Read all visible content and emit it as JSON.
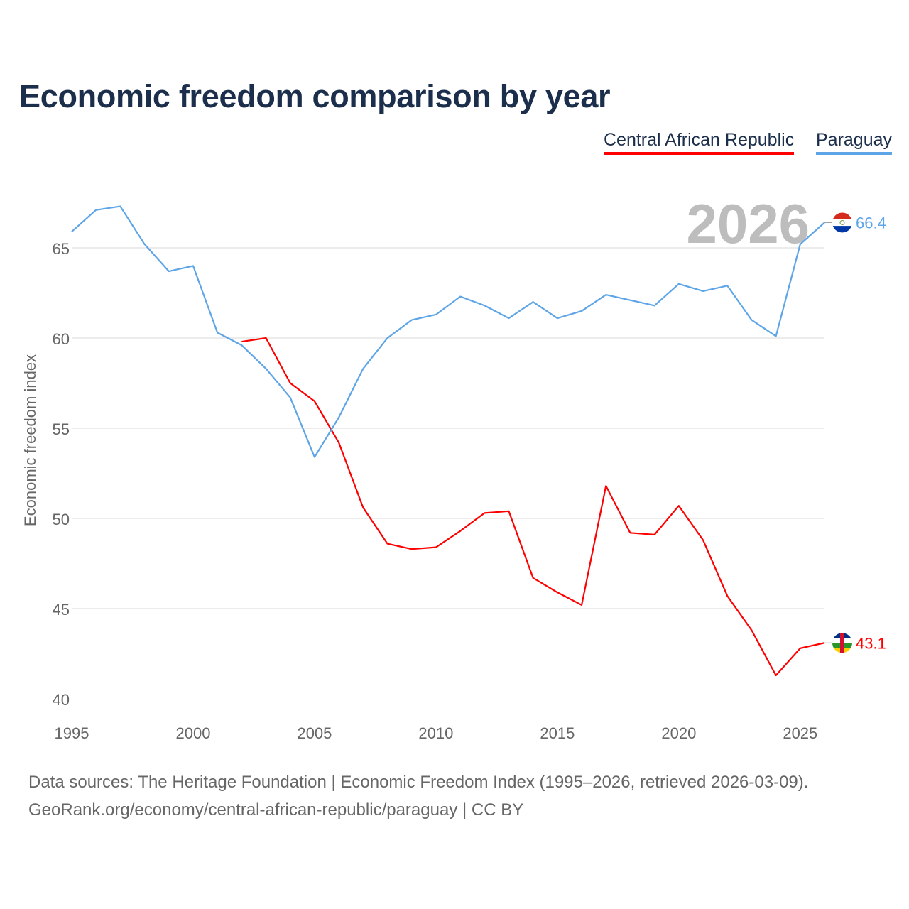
{
  "title": "Economic freedom comparison by year",
  "footer": {
    "sources": "Data sources: The Heritage Foundation | Economic Freedom Index (1995–2026, retrieved 2026-03-09).",
    "url": "GeoRank.org/economy/central-african-republic/paraguay | CC BY"
  },
  "chart_data": {
    "type": "line",
    "title": "Economic freedom comparison by year",
    "xlabel": "",
    "ylabel": "Economic freedom index",
    "xlim": [
      1995,
      2026
    ],
    "ylim": [
      40,
      68
    ],
    "xticks": [
      1995,
      2000,
      2005,
      2010,
      2015,
      2020,
      2025
    ],
    "yticks": [
      40,
      45,
      50,
      55,
      60,
      65
    ],
    "grid": true,
    "legend_position": "top-right",
    "year_label": "2026",
    "series": [
      {
        "name": "Central African Republic",
        "color": "#ff0000",
        "flag": "central-african-republic-flag",
        "end_label": "43.1",
        "x": [
          2002,
          2003,
          2004,
          2005,
          2006,
          2007,
          2008,
          2009,
          2010,
          2011,
          2012,
          2013,
          2014,
          2015,
          2016,
          2017,
          2018,
          2019,
          2020,
          2021,
          2022,
          2023,
          2024,
          2025,
          2026
        ],
        "values": [
          59.8,
          60.0,
          57.5,
          56.5,
          54.2,
          50.6,
          48.6,
          48.3,
          48.4,
          49.3,
          50.3,
          50.4,
          46.7,
          45.9,
          45.2,
          51.8,
          49.2,
          49.1,
          50.7,
          48.8,
          45.7,
          43.8,
          41.3,
          42.8,
          43.1
        ]
      },
      {
        "name": "Paraguay",
        "color": "#5ea5e8",
        "flag": "paraguay-flag",
        "end_label": "66.4",
        "x": [
          1995,
          1996,
          1997,
          1998,
          1999,
          2000,
          2001,
          2002,
          2003,
          2004,
          2005,
          2006,
          2007,
          2008,
          2009,
          2010,
          2011,
          2012,
          2013,
          2014,
          2015,
          2016,
          2017,
          2018,
          2019,
          2020,
          2021,
          2022,
          2023,
          2024,
          2025,
          2026
        ],
        "values": [
          65.9,
          67.1,
          67.3,
          65.2,
          63.7,
          64.0,
          60.3,
          59.6,
          58.3,
          56.7,
          53.4,
          55.6,
          58.3,
          60.0,
          61.0,
          61.3,
          62.3,
          61.8,
          61.1,
          62.0,
          61.1,
          61.5,
          62.4,
          62.1,
          61.8,
          63.0,
          62.6,
          62.9,
          61.0,
          60.1,
          65.2,
          66.4
        ]
      }
    ]
  }
}
